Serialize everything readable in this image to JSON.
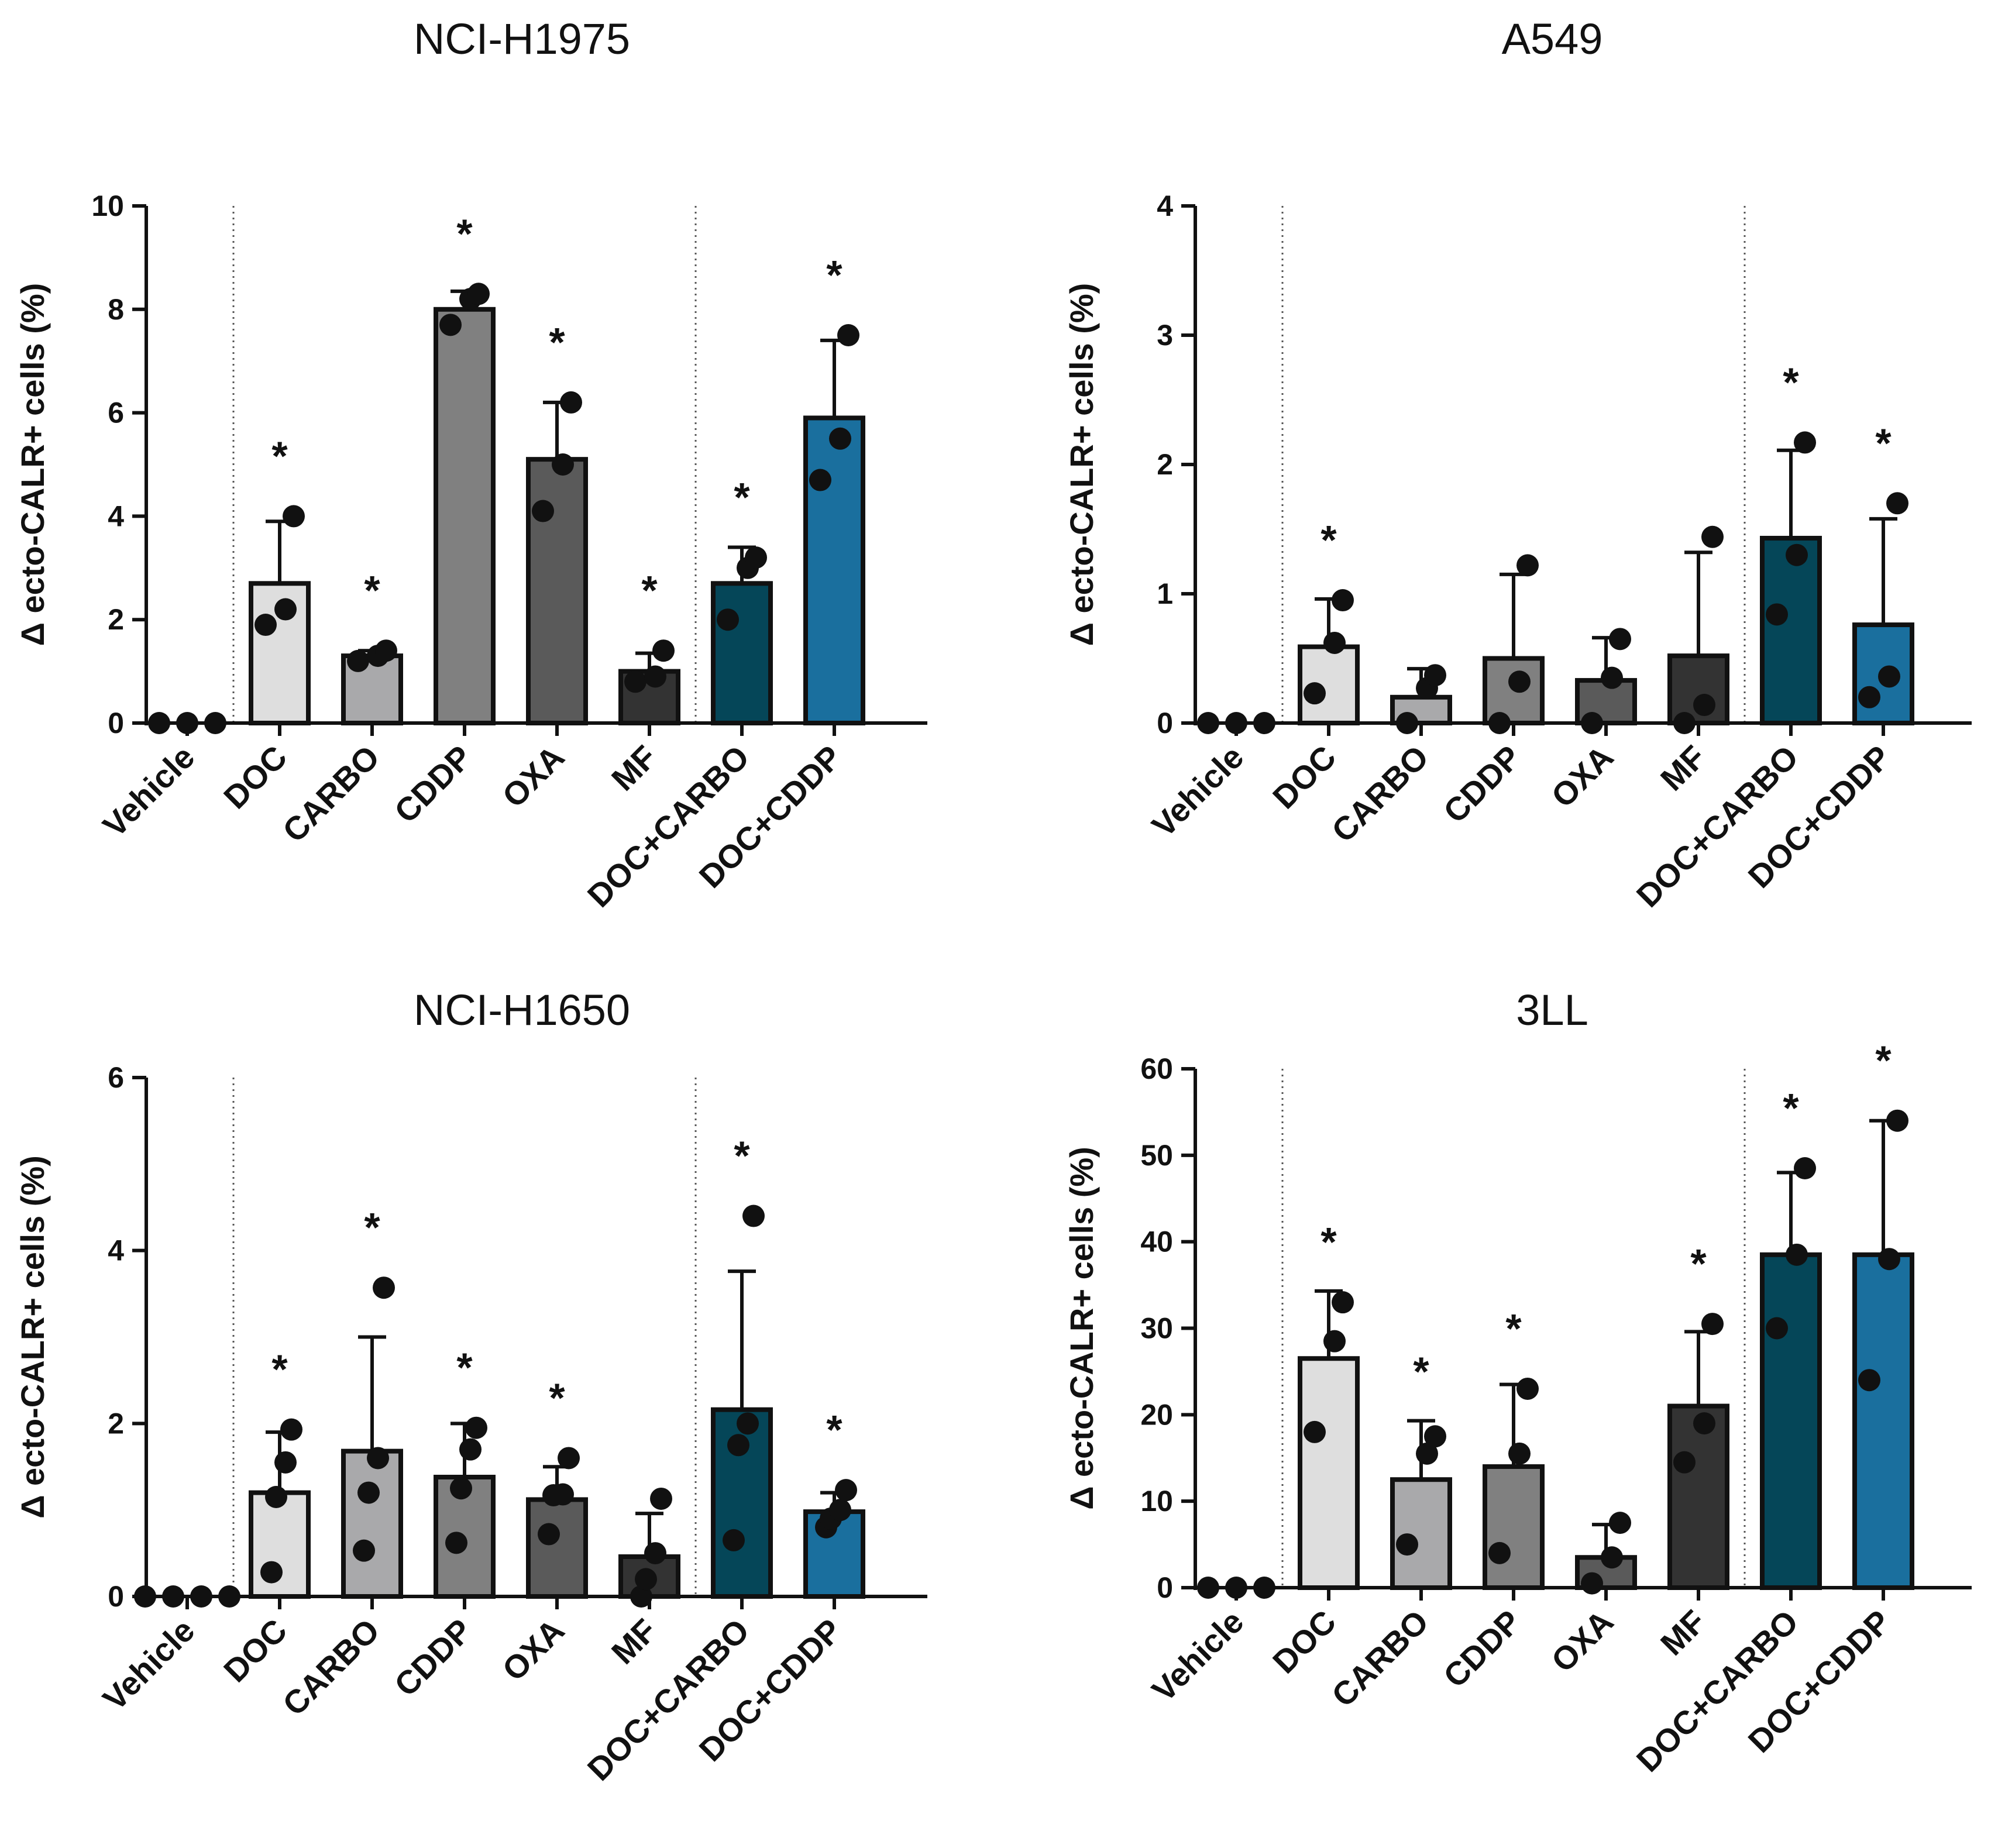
{
  "chart_data": [
    {
      "type": "bar",
      "title": "NCI-H1975",
      "xlabel": "",
      "ylabel": "Δ ecto-CALR+ cells (%)",
      "ylim": [
        0,
        10
      ],
      "yticks": [
        0,
        2,
        4,
        6,
        8,
        10
      ],
      "categories": [
        "Vehicle",
        "DOC",
        "CARBO",
        "CDDP",
        "OXA",
        "MF",
        "DOC+CARBO",
        "DOC+CDDP"
      ],
      "values": [
        0,
        2.7,
        1.3,
        8.0,
        5.1,
        1.0,
        2.7,
        5.9
      ],
      "sd": [
        0,
        1.2,
        0.1,
        0.35,
        1.1,
        0.35,
        0.7,
        1.5
      ],
      "points": [
        [
          0,
          0,
          0
        ],
        [
          1.9,
          2.2,
          4.0
        ],
        [
          1.2,
          1.3,
          1.4
        ],
        [
          7.7,
          8.2,
          8.3
        ],
        [
          4.1,
          5.0,
          6.2
        ],
        [
          0.8,
          0.9,
          1.4
        ],
        [
          2.0,
          3.0,
          3.2
        ],
        [
          4.7,
          5.5,
          7.5
        ]
      ],
      "significance": [
        "",
        "*",
        "*",
        "*",
        "*",
        "*",
        "*",
        "*"
      ],
      "separators_after": [
        0,
        5
      ]
    },
    {
      "type": "bar",
      "title": "A549",
      "xlabel": "",
      "ylabel": "Δ ecto-CALR+ cells (%)",
      "ylim": [
        0,
        4
      ],
      "yticks": [
        0,
        1,
        2,
        3,
        4
      ],
      "categories": [
        "Vehicle",
        "DOC",
        "CARBO",
        "CDDP",
        "OXA",
        "MF",
        "DOC+CARBO",
        "DOC+CDDP"
      ],
      "values": [
        0,
        0.59,
        0.2,
        0.5,
        0.33,
        0.52,
        1.43,
        0.76
      ],
      "sd": [
        0,
        0.37,
        0.22,
        0.65,
        0.33,
        0.8,
        0.68,
        0.82
      ],
      "points": [
        [
          0,
          0,
          0
        ],
        [
          0.23,
          0.62,
          0.95
        ],
        [
          0.0,
          0.27,
          0.37
        ],
        [
          0.0,
          0.32,
          1.22
        ],
        [
          0.0,
          0.35,
          0.65
        ],
        [
          0.0,
          0.14,
          1.44
        ],
        [
          0.84,
          1.3,
          2.17
        ],
        [
          0.2,
          0.36,
          1.7
        ]
      ],
      "significance": [
        "",
        "*",
        "",
        "",
        "",
        "",
        "*",
        "*"
      ],
      "separators_after": [
        0,
        5
      ]
    },
    {
      "type": "bar",
      "title": "NCI-H1650",
      "xlabel": "",
      "ylabel": "Δ ecto-CALR+ cells (%)",
      "ylim": [
        0,
        6
      ],
      "yticks": [
        0,
        2,
        4,
        6
      ],
      "categories": [
        "Vehicle",
        "DOC",
        "CARBO",
        "CDDP",
        "OXA",
        "MF",
        "DOC+CARBO",
        "DOC+CDDP"
      ],
      "values": [
        0,
        1.2,
        1.68,
        1.38,
        1.12,
        0.46,
        2.16,
        0.98
      ],
      "sd": [
        0,
        0.7,
        1.32,
        0.62,
        0.38,
        0.5,
        1.6,
        0.22
      ],
      "points": [
        [
          0,
          0,
          0,
          0
        ],
        [
          0.28,
          1.15,
          1.55,
          1.93
        ],
        [
          0.53,
          1.2,
          1.6,
          3.57
        ],
        [
          0.62,
          1.25,
          1.7,
          1.95
        ],
        [
          0.72,
          1.17,
          1.18,
          1.6
        ],
        [
          0.0,
          0.2,
          0.5,
          1.13
        ],
        [
          0.65,
          1.75,
          2.0,
          4.4
        ],
        [
          0.8,
          0.9,
          1.0,
          1.23
        ]
      ],
      "significance": [
        "",
        "*",
        "*",
        "*",
        "*",
        "",
        "*",
        "*"
      ],
      "separators_after": [
        0,
        5
      ]
    },
    {
      "type": "bar",
      "title": "3LL",
      "xlabel": "",
      "ylabel": "Δ ecto-CALR+ cells (%)",
      "ylim": [
        0,
        60
      ],
      "yticks": [
        0,
        10,
        20,
        30,
        40,
        50,
        60
      ],
      "categories": [
        "Vehicle",
        "DOC",
        "CARBO",
        "CDDP",
        "OXA",
        "MF",
        "DOC+CARBO",
        "DOC+CDDP"
      ],
      "values": [
        0,
        26.5,
        12.5,
        14.0,
        3.5,
        21.0,
        38.5,
        38.5
      ],
      "sd": [
        0,
        7.8,
        6.8,
        9.5,
        3.8,
        8.6,
        9.5,
        15.5
      ],
      "points": [
        [
          0,
          0,
          0
        ],
        [
          18.0,
          28.5,
          33.0
        ],
        [
          5.0,
          15.5,
          17.5
        ],
        [
          4.0,
          15.5,
          23.0
        ],
        [
          0.5,
          3.5,
          7.5
        ],
        [
          14.5,
          19.0,
          30.5
        ],
        [
          30.0,
          38.5,
          48.5
        ],
        [
          24.0,
          38.0,
          54.0
        ]
      ],
      "significance": [
        "",
        "*",
        "*",
        "*",
        "",
        "*",
        "*",
        "*"
      ],
      "separators_after": [
        0,
        5
      ]
    }
  ],
  "colors": {
    "bars": [
      "#ffffff",
      "#dedede",
      "#a9a9ab",
      "#808080",
      "#5a5a5a",
      "#333333",
      "#054658",
      "#1a6f9e"
    ],
    "outline": "#111111",
    "points": "#111111",
    "separator": "#555555"
  }
}
